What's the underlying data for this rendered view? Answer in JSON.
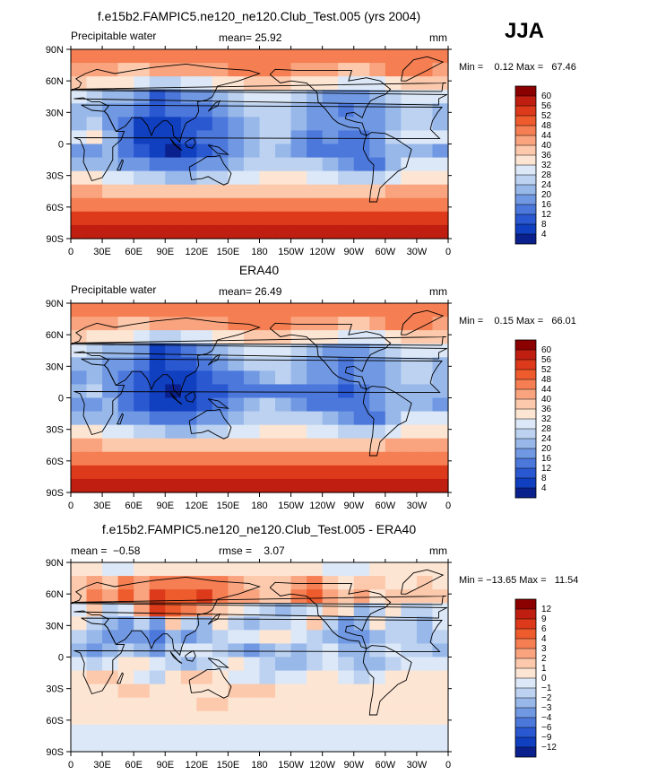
{
  "figure": {
    "season": "JJA"
  },
  "chart_data": [
    {
      "type": "heatmap",
      "title": "f.e15b2.FAMPIC5.ne120_ne120.Club_Test.005 (yrs 2004)",
      "left_string": "Precipitable water",
      "center_string": "mean=   25.92",
      "right_string": "mm",
      "minmax": "Min =    0.12 Max =   67.46",
      "x_ticks": [
        "0",
        "30E",
        "60E",
        "90E",
        "120E",
        "150E",
        "180",
        "150W",
        "120W",
        "90W",
        "60W",
        "30W",
        "0"
      ],
      "y_ticks": [
        "90N",
        "60N",
        "30N",
        "0",
        "30S",
        "60S",
        "90S"
      ],
      "xlim": [
        0,
        360
      ],
      "ylim": [
        -90,
        90
      ],
      "colorbar_labels": [
        "60",
        "56",
        "52",
        "48",
        "44",
        "40",
        "36",
        "32",
        "28",
        "24",
        "20",
        "16",
        "12",
        "8",
        "4"
      ],
      "colors": [
        "#8b0000",
        "#bf1e10",
        "#dc3a1a",
        "#ee5b2c",
        "#f57e52",
        "#f9a47f",
        "#fcc9ac",
        "#fde5d3",
        "#dce8f7",
        "#bcd2f0",
        "#98b8ea",
        "#7199e3",
        "#4c78dc",
        "#2a58d1",
        "#103fbf",
        "#0a208c"
      ],
      "rows": [
        [
          4,
          4,
          4,
          4,
          4,
          4,
          4,
          4,
          4,
          4,
          4,
          4,
          4,
          4,
          4,
          4,
          4,
          4,
          4,
          4,
          4,
          4,
          4,
          4
        ],
        [
          5,
          5,
          5,
          6,
          6,
          5,
          5,
          5,
          5,
          5,
          4,
          4,
          4,
          4,
          5,
          5,
          5,
          6,
          6,
          5,
          4,
          4,
          4,
          5
        ],
        [
          6,
          7,
          7,
          7,
          8,
          9,
          9,
          8,
          8,
          7,
          7,
          6,
          6,
          6,
          7,
          7,
          7,
          8,
          8,
          8,
          7,
          6,
          6,
          6
        ],
        [
          8,
          9,
          10,
          10,
          11,
          13,
          12,
          11,
          11,
          10,
          9,
          8,
          8,
          8,
          9,
          10,
          11,
          11,
          11,
          10,
          9,
          8,
          8,
          8
        ],
        [
          10,
          10,
          11,
          11,
          12,
          13,
          12,
          12,
          12,
          11,
          10,
          9,
          9,
          9,
          10,
          11,
          11,
          12,
          11,
          11,
          10,
          9,
          9,
          10
        ],
        [
          10,
          9,
          11,
          12,
          14,
          14,
          14,
          13,
          13,
          12,
          11,
          10,
          9,
          9,
          10,
          11,
          11,
          11,
          11,
          11,
          10,
          9,
          9,
          10
        ],
        [
          8,
          7,
          10,
          12,
          14,
          14,
          14,
          13,
          12,
          12,
          11,
          10,
          9,
          9,
          11,
          12,
          11,
          12,
          12,
          11,
          9,
          8,
          8,
          8
        ],
        [
          11,
          11,
          10,
          12,
          13,
          14,
          15,
          14,
          13,
          12,
          11,
          10,
          9,
          10,
          11,
          12,
          12,
          12,
          12,
          11,
          10,
          10,
          10,
          11
        ],
        [
          10,
          10,
          10,
          11,
          11,
          12,
          12,
          12,
          11,
          11,
          10,
          9,
          9,
          9,
          9,
          9,
          10,
          11,
          12,
          12,
          10,
          8,
          8,
          8
        ],
        [
          7,
          7,
          8,
          8,
          9,
          9,
          10,
          10,
          9,
          9,
          8,
          8,
          7,
          7,
          7,
          8,
          8,
          9,
          9,
          9,
          8,
          7,
          7,
          7
        ],
        [
          5,
          5,
          6,
          6,
          6,
          6,
          6,
          6,
          6,
          6,
          6,
          6,
          6,
          6,
          6,
          6,
          6,
          6,
          6,
          6,
          5,
          5,
          5,
          5
        ],
        [
          4,
          4,
          4,
          4,
          4,
          4,
          4,
          4,
          4,
          4,
          4,
          4,
          4,
          4,
          4,
          4,
          4,
          4,
          4,
          4,
          4,
          4,
          4,
          4
        ],
        [
          2,
          2,
          2,
          2,
          2,
          2,
          2,
          2,
          2,
          2,
          2,
          2,
          2,
          2,
          2,
          2,
          2,
          2,
          2,
          2,
          2,
          2,
          2,
          2
        ],
        [
          1,
          1,
          1,
          1,
          1,
          1,
          1,
          1,
          1,
          1,
          1,
          1,
          1,
          1,
          1,
          1,
          1,
          1,
          1,
          1,
          1,
          1,
          1,
          1
        ]
      ]
    },
    {
      "type": "heatmap",
      "title": "ERA40",
      "left_string": "Precipitable water",
      "center_string": "mean=   26.49",
      "right_string": "mm",
      "minmax": "Min =    0.15 Max =   66.01",
      "x_ticks": [
        "0",
        "30E",
        "60E",
        "90E",
        "120E",
        "150E",
        "180",
        "150W",
        "120W",
        "90W",
        "60W",
        "30W",
        "0"
      ],
      "y_ticks": [
        "90N",
        "60N",
        "30N",
        "0",
        "30S",
        "60S",
        "90S"
      ],
      "xlim": [
        0,
        360
      ],
      "ylim": [
        -90,
        90
      ],
      "colorbar_labels": [
        "60",
        "56",
        "52",
        "48",
        "44",
        "40",
        "36",
        "32",
        "28",
        "24",
        "20",
        "16",
        "12",
        "8",
        "4"
      ],
      "colors": [
        "#8b0000",
        "#bf1e10",
        "#dc3a1a",
        "#ee5b2c",
        "#f57e52",
        "#f9a47f",
        "#fcc9ac",
        "#fde5d3",
        "#dce8f7",
        "#bcd2f0",
        "#98b8ea",
        "#7199e3",
        "#4c78dc",
        "#2a58d1",
        "#103fbf",
        "#0a208c"
      ],
      "rows": [
        [
          4,
          4,
          4,
          4,
          4,
          4,
          4,
          4,
          4,
          4,
          4,
          4,
          4,
          4,
          4,
          4,
          4,
          4,
          4,
          4,
          4,
          4,
          4,
          4
        ],
        [
          5,
          5,
          5,
          6,
          6,
          5,
          5,
          5,
          5,
          5,
          4,
          4,
          4,
          4,
          5,
          5,
          5,
          6,
          6,
          5,
          4,
          4,
          4,
          5
        ],
        [
          6,
          7,
          7,
          7,
          8,
          9,
          9,
          8,
          8,
          7,
          7,
          6,
          6,
          6,
          7,
          7,
          7,
          8,
          8,
          8,
          7,
          6,
          6,
          6
        ],
        [
          8,
          9,
          10,
          10,
          11,
          14,
          13,
          12,
          11,
          10,
          9,
          8,
          8,
          8,
          9,
          10,
          11,
          11,
          11,
          10,
          9,
          8,
          8,
          8
        ],
        [
          10,
          10,
          11,
          11,
          12,
          14,
          13,
          13,
          12,
          11,
          10,
          9,
          9,
          9,
          10,
          11,
          11,
          12,
          11,
          11,
          10,
          9,
          9,
          10
        ],
        [
          11,
          10,
          11,
          12,
          13,
          14,
          14,
          14,
          13,
          12,
          12,
          11,
          10,
          9,
          10,
          11,
          11,
          12,
          11,
          11,
          10,
          9,
          9,
          10
        ],
        [
          10,
          9,
          11,
          12,
          13,
          14,
          15,
          14,
          13,
          13,
          12,
          12,
          12,
          12,
          12,
          12,
          12,
          13,
          12,
          11,
          10,
          10,
          10,
          10
        ],
        [
          11,
          11,
          10,
          12,
          13,
          14,
          14,
          14,
          13,
          12,
          11,
          10,
          9,
          10,
          11,
          12,
          12,
          12,
          12,
          11,
          10,
          10,
          10,
          11
        ],
        [
          10,
          10,
          10,
          11,
          11,
          12,
          12,
          12,
          11,
          11,
          10,
          9,
          9,
          9,
          9,
          9,
          10,
          11,
          12,
          12,
          10,
          8,
          8,
          8
        ],
        [
          7,
          7,
          8,
          8,
          9,
          9,
          10,
          10,
          9,
          9,
          8,
          8,
          7,
          7,
          7,
          8,
          8,
          9,
          9,
          9,
          8,
          7,
          7,
          7
        ],
        [
          5,
          5,
          6,
          6,
          6,
          6,
          6,
          6,
          6,
          6,
          6,
          6,
          6,
          6,
          6,
          6,
          6,
          6,
          6,
          6,
          5,
          5,
          5,
          5
        ],
        [
          4,
          4,
          4,
          4,
          4,
          4,
          4,
          4,
          4,
          4,
          4,
          4,
          4,
          4,
          4,
          4,
          4,
          4,
          4,
          4,
          4,
          4,
          4,
          4
        ],
        [
          2,
          2,
          2,
          2,
          2,
          2,
          2,
          2,
          2,
          2,
          2,
          2,
          2,
          2,
          2,
          2,
          2,
          2,
          2,
          2,
          2,
          2,
          2,
          2
        ],
        [
          1,
          1,
          1,
          1,
          1,
          1,
          1,
          1,
          1,
          1,
          1,
          1,
          1,
          1,
          1,
          1,
          1,
          1,
          1,
          1,
          1,
          1,
          1,
          1
        ]
      ]
    },
    {
      "type": "heatmap",
      "title": "f.e15b2.FAMPIC5.ne120_ne120.Club_Test.005 - ERA40",
      "left_string": "mean =  −0.58",
      "center_string": "rmse =    3.07",
      "right_string": "mm",
      "minmax": "Min = −13.65 Max =   11.54",
      "x_ticks": [
        "0",
        "30E",
        "60E",
        "90E",
        "120E",
        "150E",
        "180",
        "150W",
        "120W",
        "90W",
        "60W",
        "30W",
        "0"
      ],
      "y_ticks": [
        "90N",
        "60N",
        "30N",
        "0",
        "30S",
        "60S",
        "90S"
      ],
      "xlim": [
        0,
        360
      ],
      "ylim": [
        -90,
        90
      ],
      "colorbar_labels": [
        "12",
        "9",
        "6",
        "4",
        "3",
        "2",
        "1",
        "0",
        "−1",
        "−2",
        "−3",
        "−4",
        "−6",
        "−9",
        "−12"
      ],
      "colors": [
        "#8b0000",
        "#bf1e10",
        "#dc3a1a",
        "#ee5b2c",
        "#f57e52",
        "#f9a47f",
        "#fcc9ac",
        "#fde5d3",
        "#dce8f7",
        "#bcd2f0",
        "#98b8ea",
        "#7199e3",
        "#4c78dc",
        "#2a58d1",
        "#103fbf",
        "#0a208c"
      ],
      "rows": [
        [
          7,
          7,
          8,
          8,
          7,
          7,
          7,
          7,
          7,
          7,
          7,
          7,
          7,
          7,
          7,
          7,
          8,
          8,
          8,
          7,
          7,
          7,
          7,
          7
        ],
        [
          6,
          5,
          6,
          4,
          5,
          4,
          4,
          4,
          4,
          4,
          5,
          6,
          6,
          6,
          5,
          4,
          6,
          7,
          6,
          6,
          7,
          7,
          6,
          7
        ],
        [
          6,
          4,
          5,
          3,
          5,
          2,
          3,
          3,
          2,
          4,
          5,
          5,
          6,
          6,
          4,
          3,
          5,
          6,
          5,
          7,
          6,
          6,
          6,
          6
        ],
        [
          8,
          6,
          9,
          8,
          5,
          2,
          3,
          4,
          5,
          6,
          7,
          8,
          9,
          10,
          9,
          8,
          6,
          7,
          10,
          9,
          7,
          9,
          9,
          8
        ],
        [
          7,
          9,
          10,
          11,
          9,
          11,
          6,
          9,
          10,
          7,
          9,
          10,
          9,
          9,
          8,
          6,
          9,
          11,
          10,
          7,
          9,
          9,
          10,
          8
        ],
        [
          9,
          10,
          11,
          11,
          11,
          12,
          10,
          11,
          10,
          9,
          8,
          8,
          7,
          7,
          8,
          9,
          10,
          11,
          11,
          10,
          9,
          9,
          10,
          9
        ],
        [
          10,
          11,
          10,
          9,
          10,
          11,
          9,
          8,
          8,
          9,
          10,
          11,
          10,
          9,
          10,
          9,
          8,
          10,
          10,
          9,
          8,
          9,
          9,
          10
        ],
        [
          8,
          9,
          8,
          7,
          7,
          8,
          9,
          10,
          9,
          8,
          7,
          8,
          9,
          10,
          10,
          9,
          8,
          9,
          10,
          10,
          9,
          8,
          8,
          8
        ],
        [
          7,
          6,
          6,
          7,
          8,
          9,
          7,
          6,
          6,
          7,
          8,
          8,
          9,
          8,
          8,
          7,
          7,
          8,
          9,
          8,
          7,
          7,
          7,
          7
        ],
        [
          7,
          7,
          7,
          6,
          6,
          7,
          7,
          7,
          7,
          7,
          6,
          6,
          6,
          7,
          7,
          7,
          7,
          7,
          7,
          7,
          7,
          7,
          7,
          7
        ],
        [
          7,
          7,
          7,
          7,
          7,
          7,
          7,
          7,
          6,
          6,
          7,
          7,
          7,
          7,
          7,
          7,
          7,
          7,
          7,
          7,
          7,
          7,
          7,
          7
        ],
        [
          7,
          7,
          7,
          7,
          7,
          7,
          7,
          7,
          7,
          7,
          7,
          7,
          7,
          7,
          7,
          7,
          7,
          7,
          7,
          7,
          7,
          7,
          7,
          7
        ],
        [
          8,
          8,
          8,
          8,
          8,
          8,
          8,
          8,
          8,
          8,
          8,
          8,
          8,
          8,
          8,
          8,
          8,
          8,
          8,
          8,
          8,
          8,
          8,
          8
        ],
        [
          8,
          8,
          8,
          8,
          8,
          8,
          8,
          8,
          8,
          8,
          8,
          8,
          8,
          8,
          8,
          8,
          8,
          8,
          8,
          8,
          8,
          8,
          8,
          8
        ]
      ]
    }
  ]
}
